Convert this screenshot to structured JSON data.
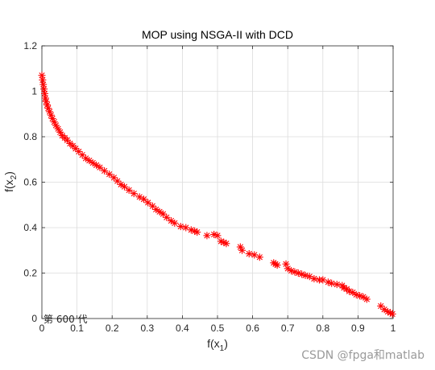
{
  "chart_data": {
    "type": "scatter",
    "title": "MOP using NSGA-II with DCD",
    "xlabel": "f(x",
    "xlabel_sub": "1",
    "xlabel_end": ")",
    "ylabel": "f(x",
    "ylabel_sub": "2",
    "ylabel_end": ")",
    "xlim": [
      0,
      1
    ],
    "ylim": [
      0,
      1.2
    ],
    "xticks": [
      0,
      0.1,
      0.2,
      0.3,
      0.4,
      0.5,
      0.6,
      0.7,
      0.8,
      0.9,
      1
    ],
    "xtick_labels": [
      "0",
      "0.1",
      "0.2",
      "0.3",
      "0.4",
      "0.5",
      "0.6",
      "0.7",
      "0.8",
      "0.9",
      "1"
    ],
    "yticks": [
      0,
      0.2,
      0.4,
      0.6,
      0.8,
      1,
      1.2
    ],
    "ytick_labels": [
      "0",
      "0.2",
      "0.4",
      "0.6",
      "0.8",
      "1",
      "1.2"
    ],
    "grid": true,
    "marker": "asterisk",
    "marker_color": "#ff0000",
    "annotation": "第 600 代",
    "series": [
      {
        "x": [
          0.0,
          0.002,
          0.004,
          0.006,
          0.008,
          0.01,
          0.012,
          0.015,
          0.018,
          0.022,
          0.026,
          0.03,
          0.035,
          0.04,
          0.046,
          0.052,
          0.058,
          0.065,
          0.072,
          0.08,
          0.088,
          0.096,
          0.105,
          0.115,
          0.125,
          0.135,
          0.145,
          0.155,
          0.165,
          0.178,
          0.192,
          0.205,
          0.215,
          0.225,
          0.235,
          0.248,
          0.262,
          0.278,
          0.29,
          0.302,
          0.315,
          0.325,
          0.335,
          0.345,
          0.355,
          0.368,
          0.378,
          0.395,
          0.41,
          0.425,
          0.435,
          0.442,
          0.47,
          0.49,
          0.5,
          0.51,
          0.518,
          0.525,
          0.565,
          0.57,
          0.59,
          0.605,
          0.62,
          0.66,
          0.665,
          0.67,
          0.695,
          0.7,
          0.71,
          0.72,
          0.73,
          0.74,
          0.75,
          0.762,
          0.775,
          0.79,
          0.8,
          0.815,
          0.825,
          0.84,
          0.855,
          0.86,
          0.868,
          0.875,
          0.885,
          0.895,
          0.905,
          0.915,
          0.925,
          0.965,
          0.975,
          0.985,
          0.992,
          0.998
        ],
        "y": [
          1.07,
          1.05,
          1.03,
          1.01,
          0.99,
          0.97,
          0.955,
          0.94,
          0.925,
          0.91,
          0.895,
          0.88,
          0.865,
          0.85,
          0.835,
          0.82,
          0.805,
          0.795,
          0.785,
          0.77,
          0.76,
          0.748,
          0.735,
          0.72,
          0.705,
          0.695,
          0.685,
          0.675,
          0.665,
          0.65,
          0.635,
          0.62,
          0.605,
          0.59,
          0.58,
          0.565,
          0.55,
          0.535,
          0.525,
          0.51,
          0.495,
          0.48,
          0.47,
          0.46,
          0.445,
          0.43,
          0.42,
          0.405,
          0.4,
          0.39,
          0.385,
          0.38,
          0.365,
          0.37,
          0.365,
          0.34,
          0.335,
          0.33,
          0.315,
          0.3,
          0.285,
          0.28,
          0.27,
          0.245,
          0.24,
          0.235,
          0.24,
          0.22,
          0.21,
          0.205,
          0.2,
          0.195,
          0.19,
          0.185,
          0.175,
          0.17,
          0.17,
          0.16,
          0.155,
          0.15,
          0.145,
          0.135,
          0.13,
          0.12,
          0.115,
          0.105,
          0.1,
          0.095,
          0.085,
          0.055,
          0.04,
          0.03,
          0.025,
          0.02
        ]
      }
    ]
  },
  "watermark": "CSDN @fpga和matlab"
}
